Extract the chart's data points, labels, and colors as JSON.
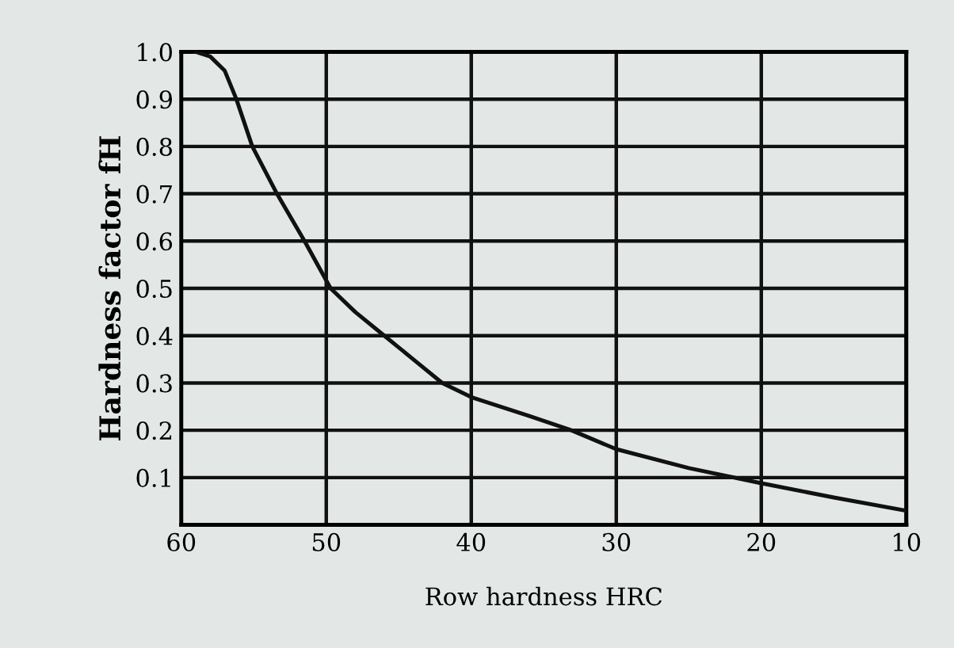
{
  "chart_data": {
    "type": "line",
    "xlabel": "Row hardness HRC",
    "ylabel": "Hardness factor fH",
    "x": [
      59,
      58,
      57,
      56.2,
      55.1,
      53.4,
      51.5,
      49.7,
      48,
      46,
      44,
      42,
      40,
      36,
      33.1,
      30,
      25,
      20,
      15,
      10
    ],
    "series": [
      {
        "color": "#111111",
        "values": [
          1.0,
          0.99,
          0.96,
          0.9,
          0.8,
          0.7,
          0.6,
          0.5,
          0.45,
          0.4,
          0.35,
          0.3,
          0.27,
          0.23,
          0.2,
          0.16,
          0.12,
          0.088,
          0.058,
          0.03
        ]
      }
    ],
    "xlim": [
      60,
      10
    ],
    "xticks": [
      60,
      50,
      40,
      30,
      20,
      10
    ],
    "ylim": [
      0,
      1.0
    ],
    "yticks": [
      {
        "value": 0,
        "label": null
      },
      0.1,
      0.2,
      0.3,
      0.4,
      0.5,
      0.6,
      0.7,
      0.8,
      0.9,
      {
        "value": 1,
        "label": "1.0"
      }
    ],
    "grid": true,
    "marker": "none",
    "line_style": "solid"
  }
}
